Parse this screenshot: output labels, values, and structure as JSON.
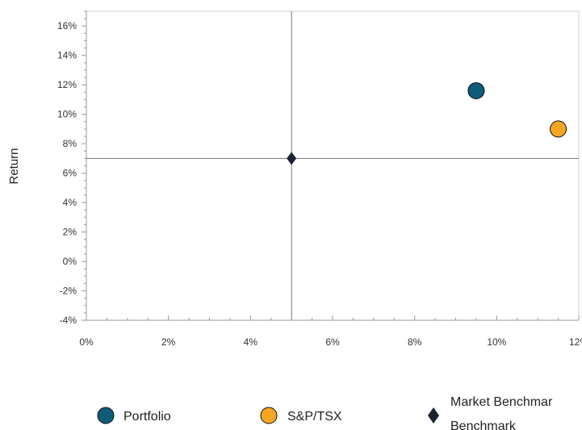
{
  "chart_data": {
    "type": "scatter",
    "title": "",
    "xlabel": "",
    "ylabel": "Return",
    "xlim": [
      0,
      12
    ],
    "ylim": [
      -4,
      17
    ],
    "x_ticks": [
      "0%",
      "2%",
      "4%",
      "6%",
      "8%",
      "10%",
      "12%"
    ],
    "y_ticks": [
      "-4%",
      "-2%",
      "0%",
      "2%",
      "4%",
      "6%",
      "8%",
      "10%",
      "12%",
      "14%",
      "16%"
    ],
    "grid": false,
    "legend_position": "bottom",
    "series": [
      {
        "name": "Portfolio",
        "marker": "circle",
        "color": "#0e5c78",
        "x": 9.5,
        "y": 11.6
      },
      {
        "name": "S&P/TSX",
        "marker": "circle",
        "color": "#f5a623",
        "x": 11.5,
        "y": 9.0
      },
      {
        "name": "Market Benchmark",
        "marker": "diamond",
        "color": "#1a2332",
        "x": 5.0,
        "y": 7.0
      }
    ],
    "reference_lines": {
      "x": 5.0,
      "y": 7.0
    }
  },
  "legend": {
    "items": [
      {
        "label": "Portfolio",
        "icon": "circle-marker-icon",
        "color": "#0e5c78"
      },
      {
        "label": "S&P/TSX",
        "icon": "circle-marker-icon",
        "color": "#f5a623"
      },
      {
        "label_line1": "Market Benchmar",
        "label_line2": "Benchmark",
        "icon": "diamond-marker-icon",
        "color": "#1a2332"
      }
    ]
  }
}
